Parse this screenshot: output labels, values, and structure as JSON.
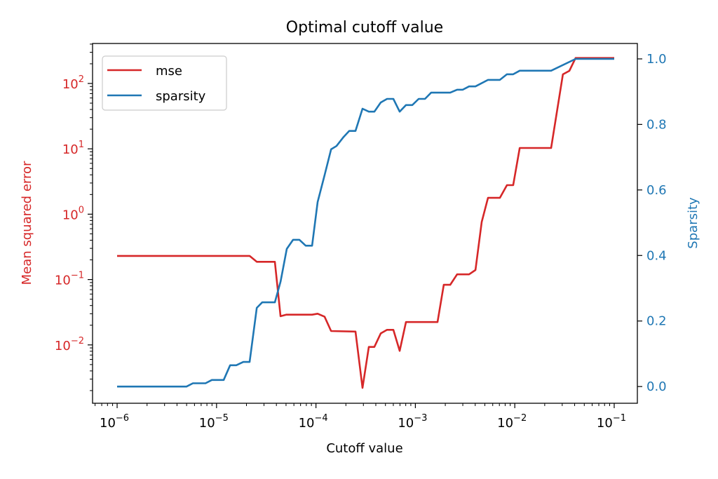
{
  "chart_data": {
    "type": "line",
    "title": "Optimal cutoff value",
    "xlabel": "Cutoff value",
    "ylabel_left": "Mean squared error",
    "ylabel_right": "Sparsity",
    "x_scale": "log",
    "y_left_scale": "log",
    "y_right_scale": "linear",
    "xlim": [
      5.66e-07,
      0.171
    ],
    "ylim_left": [
      0.00128,
      409
    ],
    "ylim_right": [
      -0.051,
      1.047
    ],
    "grid": false,
    "legend_placement": "top-left",
    "x_ticks": [
      {
        "base": "10",
        "exp": "−6",
        "value": 1e-06
      },
      {
        "base": "10",
        "exp": "−5",
        "value": 1e-05
      },
      {
        "base": "10",
        "exp": "−4",
        "value": 0.0001
      },
      {
        "base": "10",
        "exp": "−3",
        "value": 0.001
      },
      {
        "base": "10",
        "exp": "−2",
        "value": 0.01
      },
      {
        "base": "10",
        "exp": "−1",
        "value": 0.1
      }
    ],
    "y_left_ticks": [
      {
        "base": "10",
        "exp": "−2",
        "value": 0.01
      },
      {
        "base": "10",
        "exp": "−1",
        "value": 0.1
      },
      {
        "base": "10",
        "exp": "0",
        "value": 1
      },
      {
        "base": "10",
        "exp": "1",
        "value": 10
      },
      {
        "base": "10",
        "exp": "2",
        "value": 100
      }
    ],
    "y_right_ticks": [
      {
        "label": "0.0",
        "value": 0.0
      },
      {
        "label": "0.2",
        "value": 0.2
      },
      {
        "label": "0.4",
        "value": 0.4
      },
      {
        "label": "0.6",
        "value": 0.6
      },
      {
        "label": "0.8",
        "value": 0.8
      },
      {
        "label": "1.0",
        "value": 1.0
      }
    ],
    "series": [
      {
        "name": "mse",
        "axis": "left",
        "color": "#d62728",
        "x": [
          1e-06,
          2.15e-05,
          2.54e-05,
          3.86e-05,
          4.4e-05,
          5.01e-05,
          9.14e-05,
          0.000104,
          0.000122,
          0.000142,
          0.00025,
          0.000294,
          0.00034,
          0.000387,
          0.000448,
          0.000519,
          0.000601,
          0.000695,
          0.000804,
          0.00167,
          0.00193,
          0.00224,
          0.00263,
          0.00347,
          0.00402,
          0.00465,
          0.00538,
          0.00708,
          0.00834,
          0.00964,
          0.0112,
          0.0232,
          0.0305,
          0.0354,
          0.0409,
          0.1
        ],
        "y": [
          0.23,
          0.23,
          0.187,
          0.187,
          0.0275,
          0.029,
          0.029,
          0.03,
          0.027,
          0.0163,
          0.016,
          0.0022,
          0.0093,
          0.0093,
          0.015,
          0.017,
          0.017,
          0.0081,
          0.0224,
          0.0224,
          0.083,
          0.083,
          0.12,
          0.12,
          0.14,
          0.76,
          1.78,
          1.78,
          2.78,
          2.78,
          10.3,
          10.3,
          138,
          156,
          245,
          245
        ]
      },
      {
        "name": "sparsity",
        "axis": "right",
        "color": "#1f77b4",
        "x": [
          1e-06,
          4.99e-06,
          5.78e-06,
          7.74e-06,
          8.96e-06,
          1.18e-05,
          1.37e-05,
          1.58e-05,
          1.86e-05,
          2.15e-05,
          2.54e-05,
          2.88e-05,
          3.86e-05,
          4.4e-05,
          5.09e-05,
          5.89e-05,
          6.82e-05,
          7.89e-05,
          9.14e-05,
          0.000104,
          0.000122,
          0.000142,
          0.000161,
          0.00019,
          0.000216,
          0.00025,
          0.000294,
          0.00034,
          0.000387,
          0.000448,
          0.000519,
          0.000601,
          0.000695,
          0.000804,
          0.000931,
          0.00108,
          0.00125,
          0.00144,
          0.00224,
          0.00263,
          0.003,
          0.00347,
          0.00402,
          0.00538,
          0.00708,
          0.00834,
          0.00964,
          0.0112,
          0.0232,
          0.0409,
          0.1
        ],
        "y": [
          0.0,
          0.0,
          0.01,
          0.01,
          0.02,
          0.02,
          0.065,
          0.065,
          0.075,
          0.075,
          0.24,
          0.257,
          0.257,
          0.32,
          0.42,
          0.448,
          0.448,
          0.43,
          0.43,
          0.563,
          0.645,
          0.724,
          0.734,
          0.762,
          0.78,
          0.78,
          0.848,
          0.839,
          0.839,
          0.867,
          0.878,
          0.878,
          0.839,
          0.859,
          0.859,
          0.878,
          0.878,
          0.897,
          0.897,
          0.906,
          0.906,
          0.916,
          0.916,
          0.936,
          0.936,
          0.953,
          0.953,
          0.964,
          0.964,
          1.0,
          1.0
        ]
      }
    ]
  }
}
